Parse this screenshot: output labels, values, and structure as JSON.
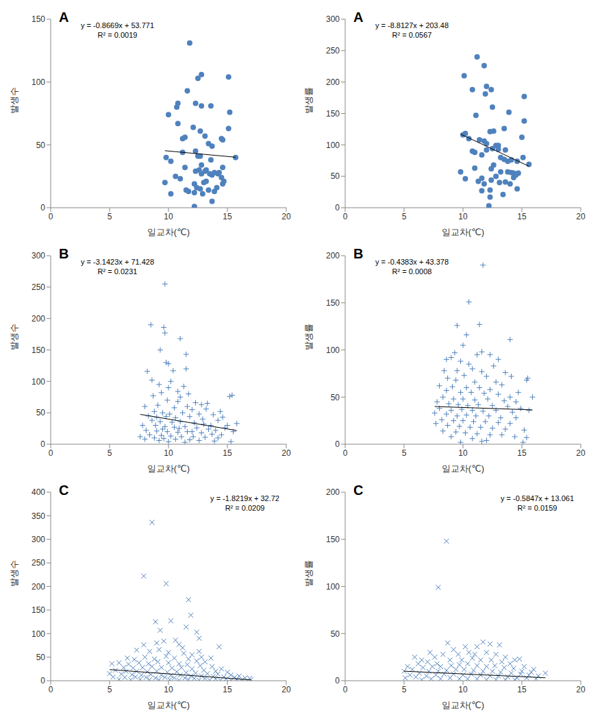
{
  "chart_data": [
    {
      "type": "scatter",
      "title": "A",
      "x_label": "일교차(℃)",
      "y_label": "발생수",
      "xlim": [
        0,
        20
      ],
      "xticks": [
        0,
        5,
        10,
        15,
        20
      ],
      "ylim": [
        0,
        150
      ],
      "yticks": [
        0,
        50,
        100,
        150
      ],
      "grid": false,
      "marker": "circle",
      "color": "#4f81bd",
      "x": [
        11.8,
        12.5,
        12.8,
        15.1,
        11.6,
        10.0,
        10.7,
        10.8,
        12.3,
        12.8,
        13.6,
        15.2,
        10.8,
        12.1,
        11.4,
        12.7,
        13.1,
        11.2,
        14.5,
        14.6,
        13.4,
        13.7,
        15.1,
        12.3,
        12.5,
        12.7,
        11.2,
        9.8,
        10.2,
        15.7,
        13.6,
        12.8,
        13.2,
        12.3,
        12.6,
        13.1,
        13.5,
        13.7,
        13.9,
        14.2,
        14.3,
        14.6,
        14.5,
        14.7,
        11.4,
        12.8,
        12.2,
        12.4,
        12.7,
        10.6,
        11.0,
        9.7,
        11.5,
        11.7,
        12.2,
        13.4,
        13.9,
        14.1,
        14.6,
        10.2,
        12.2,
        13.7,
        12.9,
        13.2,
        13.0
      ],
      "values": [
        131,
        103,
        106,
        104,
        93,
        74,
        80,
        83,
        83,
        81,
        81,
        76,
        67,
        64,
        56,
        61,
        57,
        55,
        55,
        54,
        51,
        49,
        63,
        45,
        41,
        41,
        44,
        40,
        37,
        40,
        38,
        34,
        30,
        29,
        30,
        29,
        27,
        26,
        28,
        27,
        28,
        32,
        24,
        21,
        32,
        27,
        19,
        16,
        15,
        25,
        23,
        20,
        14,
        13,
        12,
        14,
        13,
        16,
        19,
        11,
        1,
        5,
        11,
        21,
        20
      ],
      "trend_line": {
        "x": [
          9.7,
          15.7
        ],
        "values": [
          45.36,
          40.16
        ],
        "color": "#000000"
      },
      "annotations": [
        "y = -0.8669x + 53.771",
        "R² = 0.0019"
      ]
    },
    {
      "type": "scatter",
      "title": "A",
      "x_label": "일교차(℃)",
      "y_label": "발생률",
      "xlim": [
        0,
        20
      ],
      "xticks": [
        0,
        5,
        10,
        15,
        20
      ],
      "ylim": [
        0,
        300
      ],
      "yticks": [
        0,
        50,
        100,
        150,
        200,
        250,
        300
      ],
      "grid": false,
      "marker": "circle",
      "color": "#4f81bd",
      "x": [
        11.2,
        11.8,
        10.1,
        12.0,
        12.4,
        10.8,
        11.9,
        15.2,
        12.5,
        11.1,
        13.9,
        15.2,
        13.5,
        12.3,
        12.6,
        10.2,
        10.0,
        11.4,
        11.8,
        12.0,
        10.5,
        12.8,
        13.0,
        15.0,
        10.8,
        11.0,
        12.0,
        12.5,
        13.0,
        13.6,
        11.6,
        13.2,
        13.5,
        13.8,
        14.1,
        14.6,
        15.1,
        12.6,
        12.4,
        11.0,
        9.8,
        13.2,
        13.8,
        14.1,
        14.3,
        14.5,
        14.7,
        14.3,
        12.8,
        11.6,
        10.2,
        11.3,
        11.8,
        12.4,
        13.1,
        13.6,
        14.0,
        15.6,
        12.3,
        14.6,
        13.4,
        11.6,
        12.2,
        12.3
      ],
      "values": [
        240,
        226,
        210,
        193,
        188,
        188,
        181,
        177,
        160,
        147,
        152,
        138,
        126,
        121,
        122,
        118,
        116,
        108,
        106,
        102,
        110,
        99,
        99,
        112,
        90,
        88,
        92,
        94,
        93,
        92,
        84,
        80,
        77,
        74,
        76,
        74,
        80,
        68,
        62,
        63,
        57,
        57,
        57,
        56,
        55,
        52,
        55,
        48,
        50,
        47,
        46,
        42,
        38,
        44,
        40,
        41,
        38,
        69,
        28,
        30,
        21,
        27,
        3,
        17
      ],
      "trend_line": {
        "x": [
          9.8,
          15.6
        ],
        "values": [
          117.1,
          66.0
        ],
        "color": "#000000"
      },
      "annotations": [
        "y = -8.8127x + 203.48",
        "R² = 0.0567"
      ]
    },
    {
      "type": "scatter",
      "title": "B",
      "x_label": "일교차(℃)",
      "y_label": "발생수",
      "xlim": [
        0,
        20
      ],
      "xticks": [
        0,
        5,
        10,
        15,
        20
      ],
      "ylim": [
        0,
        300
      ],
      "yticks": [
        0,
        50,
        100,
        150,
        200,
        250,
        300
      ],
      "grid": false,
      "marker": "plus",
      "color": "#4f81bd",
      "x": [
        9.7,
        8.5,
        9.6,
        9.7,
        11.0,
        11.5,
        9.3,
        9.8,
        10.0,
        11.5,
        8.2,
        10.4,
        8.6,
        10.2,
        9.2,
        10.0,
        11.3,
        10.8,
        9.4,
        11.7,
        15.4,
        15.2,
        8.7,
        11.0,
        9.9,
        10.8,
        12.3,
        13.3,
        12.8,
        8.0,
        9.1,
        10.5,
        11.6,
        12.0,
        13.2,
        14.4,
        8.8,
        9.5,
        10.1,
        11.2,
        12.6,
        13.8,
        14.6,
        8.3,
        9.0,
        9.8,
        10.6,
        11.8,
        12.9,
        14.2,
        15.0,
        15.8,
        8.6,
        9.3,
        10.3,
        11.0,
        12.2,
        13.0,
        13.6,
        14.8,
        7.8,
        8.9,
        9.7,
        10.5,
        11.4,
        12.4,
        13.4,
        14.0,
        15.5,
        8.1,
        9.0,
        9.9,
        10.8,
        11.6,
        12.8,
        13.7,
        14.5,
        8.4,
        9.4,
        10.2,
        11.1,
        12.1,
        13.1,
        14.2,
        7.6,
        8.8,
        9.6,
        10.6,
        11.8,
        12.6,
        13.9,
        15.3,
        10.0,
        11.4,
        9.2,
        12.0,
        10.9,
        9.5,
        8.0
      ],
      "values": [
        255,
        190,
        186,
        177,
        168,
        143,
        150,
        130,
        128,
        120,
        116,
        117,
        102,
        100,
        95,
        90,
        92,
        84,
        82,
        80,
        78,
        76,
        77,
        75,
        70,
        68,
        66,
        65,
        63,
        60,
        62,
        58,
        60,
        55,
        56,
        52,
        52,
        50,
        48,
        50,
        48,
        47,
        43,
        45,
        43,
        44,
        42,
        44,
        40,
        38,
        30,
        33,
        38,
        36,
        35,
        36,
        34,
        32,
        30,
        26,
        30,
        30,
        28,
        27,
        28,
        26,
        24,
        22,
        20,
        22,
        21,
        20,
        19,
        20,
        18,
        16,
        15,
        15,
        14,
        13,
        12,
        12,
        11,
        10,
        12,
        10,
        9,
        8,
        7,
        6,
        5,
        4,
        4,
        3,
        6,
        20,
        25,
        24,
        8
      ],
      "trend_line": {
        "x": [
          7.6,
          15.8
        ],
        "values": [
          47.5,
          21.8
        ],
        "color": "#000000"
      },
      "annotations": [
        "y = -3.1423x + 71.428",
        "R² = 0.0231"
      ]
    },
    {
      "type": "scatter",
      "title": "B",
      "x_label": "일교차(℃)",
      "y_label": "발생률",
      "xlim": [
        0,
        20
      ],
      "xticks": [
        0,
        5,
        10,
        15,
        20
      ],
      "ylim": [
        0,
        200
      ],
      "yticks": [
        0,
        50,
        100,
        150,
        200
      ],
      "grid": false,
      "marker": "plus",
      "color": "#4f81bd",
      "x": [
        11.7,
        10.5,
        11.4,
        9.5,
        14.0,
        10.3,
        11.6,
        9.3,
        10.0,
        8.6,
        9.0,
        11.2,
        12.3,
        13.0,
        9.8,
        10.5,
        12.6,
        8.4,
        9.5,
        10.8,
        11.6,
        13.6,
        10.1,
        12.0,
        14.1,
        15.5,
        15.4,
        8.7,
        9.4,
        11.0,
        12.8,
        13.3,
        8.0,
        9.1,
        10.3,
        11.4,
        12.3,
        14.7,
        8.6,
        9.8,
        10.7,
        11.8,
        13.0,
        14.0,
        15.9,
        8.3,
        9.2,
        10.0,
        11.0,
        12.1,
        13.5,
        14.5,
        7.8,
        8.8,
        9.6,
        10.4,
        11.3,
        12.5,
        13.8,
        14.9,
        8.0,
        9.0,
        9.9,
        10.8,
        11.7,
        12.8,
        14.2,
        15.6,
        7.6,
        8.6,
        9.5,
        10.3,
        11.1,
        12.2,
        13.2,
        14.5,
        8.2,
        9.2,
        10.0,
        10.9,
        11.9,
        13.0,
        14.0,
        7.7,
        8.7,
        9.7,
        10.6,
        11.5,
        12.5,
        13.6,
        15.2,
        8.3,
        9.4,
        10.2,
        11.2,
        12.3,
        13.3,
        14.4,
        15.4,
        9.0,
        10.8,
        12.0,
        15.1,
        11.6,
        9.8
      ],
      "values": [
        190,
        151,
        127,
        126,
        111,
        116,
        98,
        97,
        105,
        90,
        92,
        95,
        95,
        90,
        88,
        85,
        83,
        78,
        78,
        80,
        77,
        76,
        73,
        72,
        72,
        70,
        68,
        70,
        68,
        66,
        66,
        63,
        62,
        61,
        60,
        60,
        58,
        55,
        57,
        55,
        55,
        54,
        53,
        50,
        50,
        50,
        48,
        48,
        47,
        48,
        46,
        45,
        45,
        43,
        42,
        41,
        42,
        41,
        40,
        38,
        38,
        36,
        37,
        36,
        35,
        36,
        34,
        36,
        33,
        32,
        30,
        31,
        30,
        30,
        28,
        28,
        26,
        25,
        25,
        24,
        24,
        23,
        22,
        22,
        20,
        19,
        18,
        18,
        17,
        16,
        15,
        14,
        13,
        12,
        11,
        10,
        10,
        8,
        7,
        8,
        6,
        4,
        2,
        3,
        2
      ],
      "trend_line": {
        "x": [
          7.6,
          15.9
        ],
        "values": [
          40.0,
          36.4
        ],
        "color": "#000000"
      },
      "annotations": [
        "y = -0.4383x + 43.378",
        "R² = 0.0008"
      ]
    },
    {
      "type": "scatter",
      "title": "C",
      "x_label": "일교차(℃)",
      "y_label": "발생수",
      "xlim": [
        0,
        20
      ],
      "xticks": [
        0,
        5,
        10,
        15,
        20
      ],
      "ylim": [
        0,
        400
      ],
      "yticks": [
        0,
        50,
        100,
        150,
        200,
        250,
        300,
        350,
        400
      ],
      "grid": false,
      "marker": "cross",
      "color": "#4f81bd",
      "x": [
        8.6,
        7.9,
        9.8,
        11.7,
        8.9,
        10.2,
        11.9,
        12.4,
        11.5,
        12.6,
        9.3,
        10.6,
        9.6,
        9.0,
        7.9,
        10.9,
        11.2,
        12.6,
        14.3,
        7.3,
        8.4,
        9.2,
        10.0,
        11.3,
        12.0,
        12.8,
        13.6,
        6.5,
        7.1,
        8.0,
        8.8,
        9.8,
        10.5,
        11.7,
        12.4,
        13.1,
        5.8,
        6.6,
        7.5,
        8.3,
        9.1,
        10.0,
        10.9,
        11.6,
        12.7,
        13.7,
        14.5,
        5.2,
        6.2,
        7.0,
        7.8,
        8.6,
        9.4,
        10.3,
        11.1,
        12.0,
        13.0,
        14.0,
        15.0,
        5.5,
        6.4,
        7.3,
        8.2,
        9.0,
        9.9,
        10.7,
        11.5,
        12.3,
        13.3,
        14.2,
        15.3,
        16.0,
        5.0,
        6.0,
        6.9,
        7.7,
        8.5,
        9.4,
        10.2,
        11.0,
        11.9,
        12.8,
        13.8,
        14.7,
        15.6,
        16.5,
        5.3,
        6.3,
        7.2,
        8.1,
        8.9,
        9.7,
        10.5,
        11.4,
        12.2,
        13.1,
        14.0,
        14.9,
        15.8,
        16.9,
        5.8,
        6.8,
        7.6,
        8.4,
        9.2,
        10.1,
        10.9,
        11.7,
        12.6,
        13.5,
        14.4,
        15.3,
        16.2,
        17.0
      ],
      "values": [
        336,
        222,
        206,
        172,
        125,
        127,
        139,
        103,
        114,
        90,
        107,
        86,
        84,
        80,
        76,
        77,
        70,
        62,
        72,
        65,
        62,
        66,
        60,
        58,
        55,
        50,
        48,
        48,
        45,
        50,
        46,
        52,
        48,
        46,
        42,
        40,
        38,
        35,
        38,
        36,
        40,
        38,
        36,
        34,
        32,
        30,
        25,
        36,
        28,
        27,
        28,
        30,
        28,
        27,
        28,
        25,
        22,
        20,
        18,
        22,
        20,
        20,
        19,
        20,
        18,
        19,
        17,
        16,
        15,
        14,
        12,
        10,
        15,
        14,
        13,
        12,
        13,
        12,
        11,
        12,
        10,
        10,
        9,
        8,
        7,
        6,
        8,
        7,
        8,
        7,
        6,
        7,
        6,
        6,
        5,
        5,
        4,
        4,
        3,
        5,
        3,
        2,
        3,
        2,
        2,
        2,
        1,
        2,
        1,
        1,
        1,
        1,
        1,
        2
      ],
      "trend_line": {
        "x": [
          5.0,
          17.0
        ],
        "values": [
          23.6,
          1.7
        ],
        "color": "#000000"
      },
      "annotations": [
        "y = -1.8219x + 32.72",
        "R² = 0.0209"
      ]
    },
    {
      "type": "scatter",
      "title": "C",
      "x_label": "일교차(℃)",
      "y_label": "발생률",
      "xlim": [
        0,
        20
      ],
      "xticks": [
        0,
        5,
        10,
        15,
        20
      ],
      "ylim": [
        0,
        200
      ],
      "yticks": [
        0,
        50,
        100,
        150,
        200
      ],
      "grid": false,
      "marker": "cross",
      "color": "#4f81bd",
      "x": [
        8.6,
        7.9,
        5.9,
        7.2,
        8.7,
        9.2,
        10.2,
        11.2,
        11.7,
        12.3,
        13.1,
        14.4,
        14.8,
        6.5,
        7.6,
        8.3,
        9.6,
        10.5,
        11.0,
        12.0,
        12.8,
        13.6,
        5.3,
        6.2,
        7.0,
        7.8,
        8.9,
        9.9,
        10.8,
        11.5,
        12.4,
        13.3,
        14.0,
        15.2,
        16.0,
        17.0,
        5.0,
        5.7,
        6.6,
        7.4,
        8.1,
        9.0,
        9.7,
        10.4,
        11.2,
        12.0,
        12.7,
        13.5,
        14.3,
        15.0,
        15.8,
        5.5,
        6.3,
        7.1,
        7.9,
        8.6,
        9.4,
        10.1,
        10.9,
        11.7,
        12.5,
        13.2,
        14.1,
        14.9,
        15.6,
        16.4,
        5.1,
        6.0,
        6.9,
        7.7,
        8.4,
        9.2,
        10.0,
        10.7,
        11.5,
        12.3,
        13.0,
        13.8,
        14.6,
        15.4,
        16.2,
        6.5,
        7.3,
        8.1,
        8.9,
        9.7,
        10.4,
        11.2,
        12.0,
        12.8,
        13.6,
        14.4
      ],
      "values": [
        148,
        99,
        25,
        30,
        40,
        33,
        36,
        36,
        41,
        39,
        38,
        22,
        23,
        22,
        25,
        28,
        28,
        30,
        28,
        30,
        28,
        25,
        15,
        18,
        20,
        18,
        22,
        22,
        24,
        22,
        22,
        20,
        18,
        15,
        12,
        8,
        10,
        12,
        14,
        15,
        15,
        16,
        17,
        18,
        16,
        15,
        16,
        14,
        13,
        10,
        9,
        6,
        8,
        10,
        10,
        11,
        12,
        12,
        11,
        10,
        10,
        9,
        8,
        7,
        6,
        5,
        3,
        4,
        5,
        6,
        7,
        7,
        6,
        7,
        6,
        5,
        5,
        4,
        3,
        3,
        2,
        1,
        2,
        2,
        3,
        2,
        2,
        2,
        1,
        1,
        1,
        1
      ],
      "trend_line": {
        "x": [
          5.0,
          17.0
        ],
        "values": [
          10.1,
          3.1
        ],
        "color": "#000000"
      },
      "annotations": [
        "y = -0.5847x + 13.061",
        "R² = 0.0159"
      ]
    }
  ]
}
